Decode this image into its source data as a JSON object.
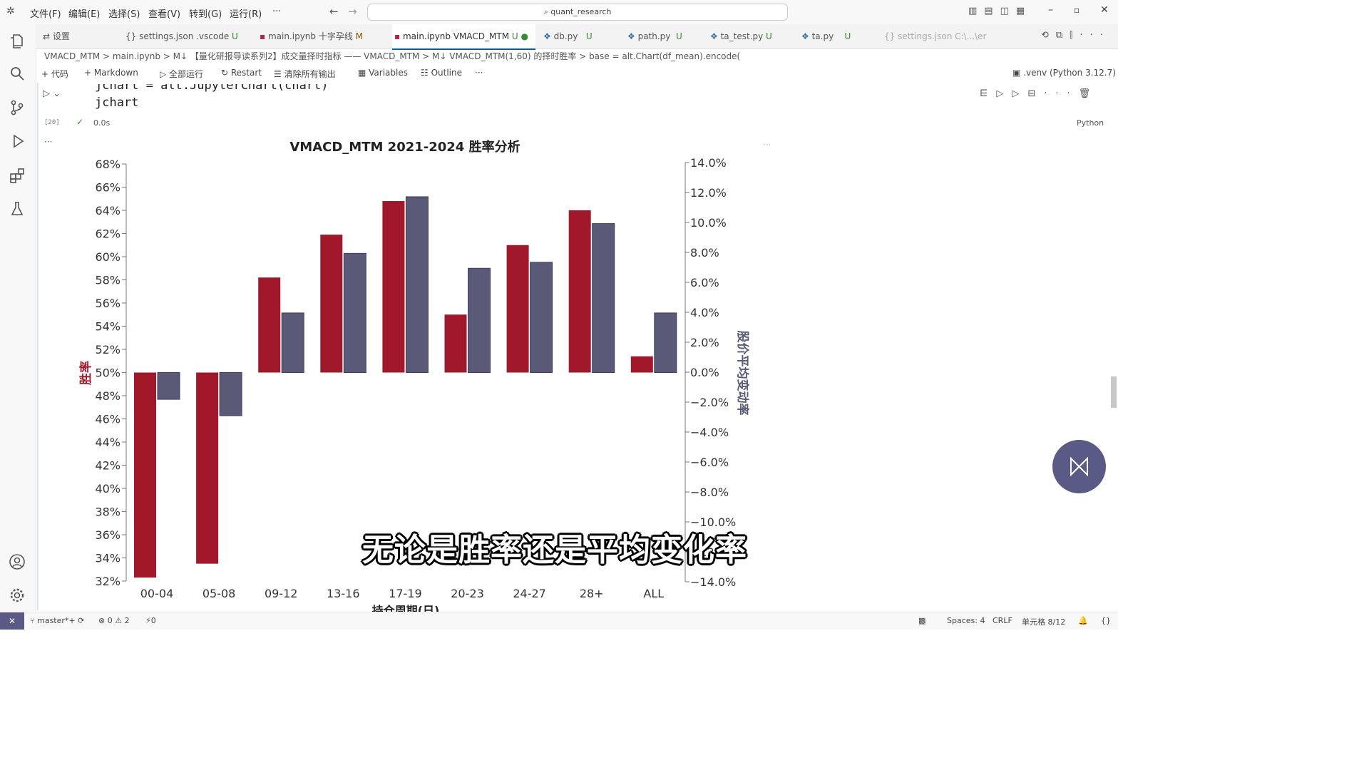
{
  "menu": [
    "文件(F)",
    "编辑(E)",
    "选择(S)",
    "查看(V)",
    "转到(G)",
    "运行(R)",
    "···"
  ],
  "search": "quant_research",
  "tabs": [
    {
      "label": "设置",
      "suffix": ""
    },
    {
      "label": "settings.json .vscode",
      "suffix": "U"
    },
    {
      "label": "main.ipynb 十字孕线",
      "suffix": "M"
    },
    {
      "label": "main.ipynb VMACD_MTM",
      "suffix": "U ●"
    },
    {
      "label": "db.py",
      "suffix": "U"
    },
    {
      "label": "path.py",
      "suffix": "U"
    },
    {
      "label": "ta_test.py",
      "suffix": "U"
    },
    {
      "label": "ta.py",
      "suffix": "U"
    },
    {
      "label": "settings.json C:\\...\\er",
      "suffix": ""
    }
  ],
  "breadcrumb": "VMACD_MTM  >  main.ipynb  >  M↓ 【量化研报导读系列2】成交量择时指标 —— VMACD_MTM  >  M↓ VMACD_MTM(1,60) 的择时胜率  >  base = alt.Chart(df_mean).encode(",
  "toolbar": {
    "code": "+ 代码",
    "markdown": "+ Markdown",
    "run_all": "全部运行",
    "restart": "Restart",
    "clear": "清除所有输出",
    "variables": "Variables",
    "outline": "Outline",
    "more": "···",
    "kernel": ".venv (Python 3.12.7)"
  },
  "cell": {
    "line1": "jchart = alt.JupyterChart(chart)",
    "line2": "jchart",
    "exec_count": "[20]",
    "time": "0.0s",
    "lang": "Python"
  },
  "chart_data": {
    "type": "bar",
    "title": "VMACD_MTM 2021-2024 胜率分析",
    "xlabel": "持仓周期(日)",
    "ylabel_left": "胜率",
    "ylabel_right": "股价平均变动率",
    "categories": [
      "00-04",
      "05-08",
      "09-12",
      "13-16",
      "17-19",
      "20-23",
      "24-27",
      "28+",
      "ALL"
    ],
    "left_axis": {
      "min": 32,
      "max": 68,
      "baseline": 50,
      "ticks": [
        "68%",
        "66%",
        "64%",
        "62%",
        "60%",
        "58%",
        "56%",
        "54%",
        "52%",
        "50%",
        "48%",
        "46%",
        "44%",
        "42%",
        "40%",
        "38%",
        "36%",
        "34%",
        "32%"
      ]
    },
    "right_axis": {
      "min": -14,
      "max": 14,
      "baseline": 0,
      "ticks": [
        "14.0%",
        "12.0%",
        "10.0%",
        "8.0%",
        "6.0%",
        "4.0%",
        "2.0%",
        "0.0%",
        "−2.0%",
        "−4.0%",
        "−6.0%",
        "−8.0%",
        "−10.0%",
        "−12.0%",
        "−14.0%"
      ]
    },
    "series": [
      {
        "name": "胜率",
        "color": "#a0182a",
        "values": [
          32.3,
          33.5,
          58.2,
          61.9,
          64.8,
          55.0,
          61.0,
          64.0,
          51.4
        ]
      },
      {
        "name": "股价平均变动率",
        "color": "#5a5a78",
        "values": [
          -1.8,
          -2.9,
          4.0,
          8.0,
          11.8,
          7.0,
          7.4,
          10.0,
          4.0
        ]
      }
    ]
  },
  "subtitle": "无论是胜率还是平均变化率",
  "status": {
    "branch": "master*+",
    "errors": "⊗ 0 ⚠ 2",
    "ports": "⚡0",
    "spaces": "Spaces: 4",
    "eol": "CRLF",
    "cell": "单元格 8/12"
  }
}
